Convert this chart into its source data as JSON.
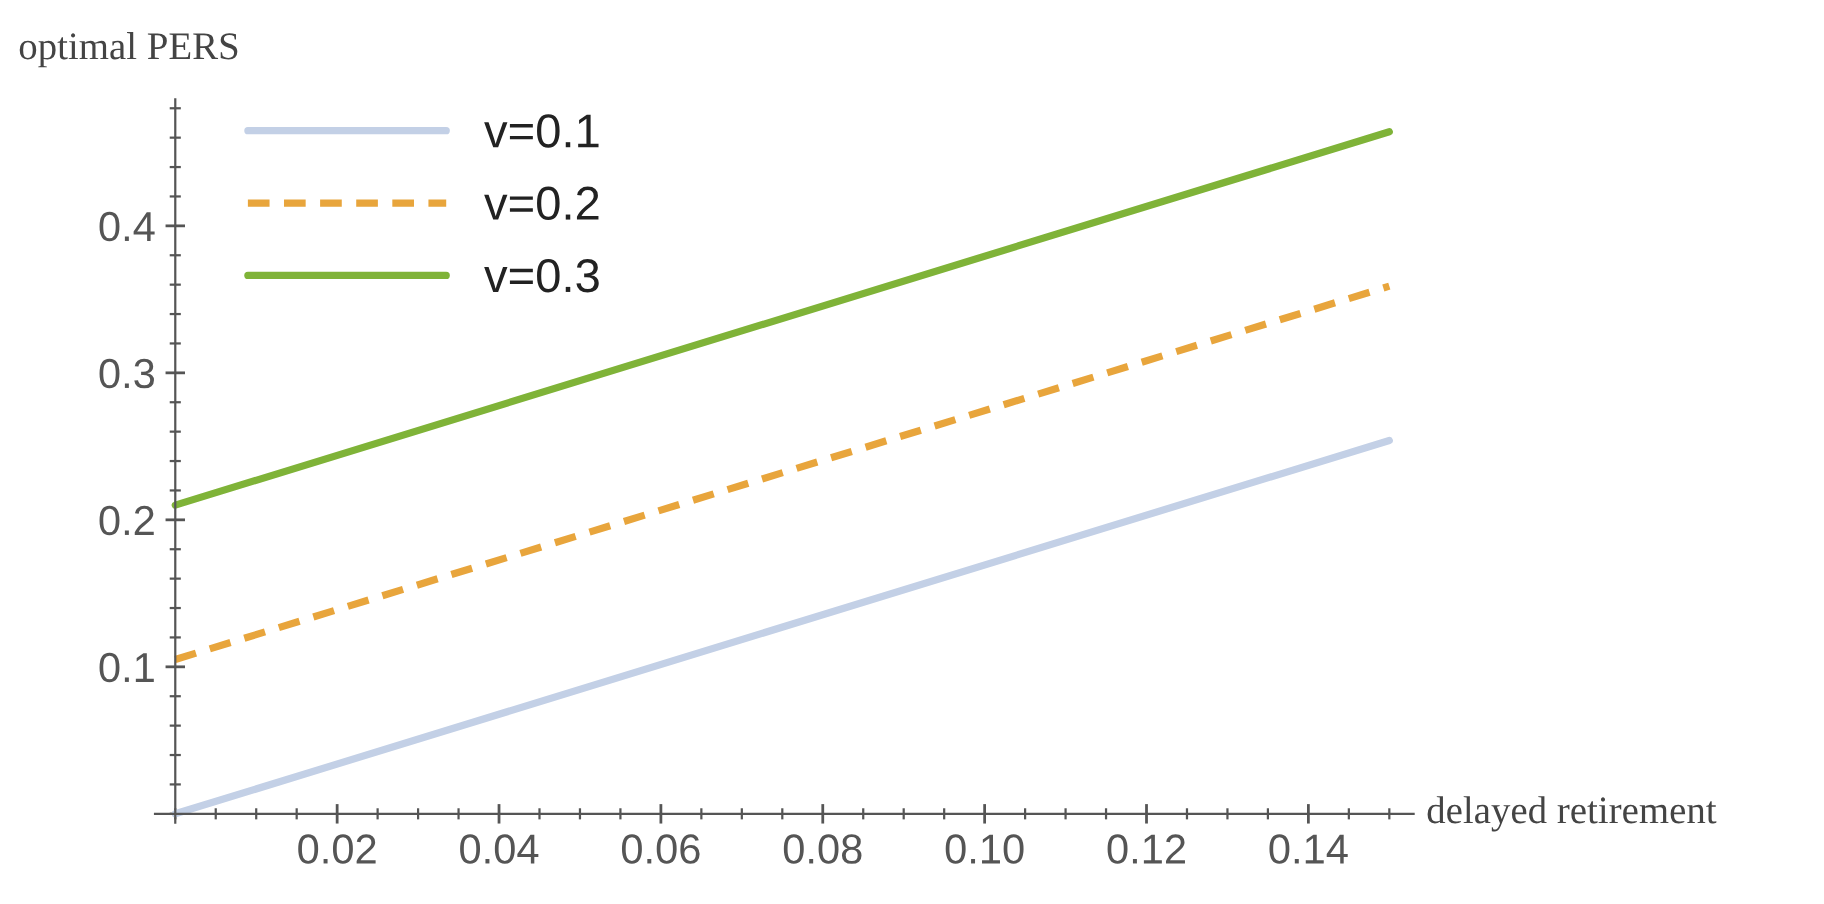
{
  "chart_data": {
    "type": "line",
    "xlabel": "delayed retirement",
    "ylabel": "optimal PERS",
    "x": [
      0,
      0.15
    ],
    "series": [
      {
        "name": "v=0.1",
        "color": "#c3d0e6",
        "values": [
          0.0,
          0.254
        ],
        "line_style": "solid"
      },
      {
        "name": "v=0.2",
        "color": "#e8a53c",
        "values": [
          0.105,
          0.359
        ],
        "line_style": "dashed"
      },
      {
        "name": "v=0.3",
        "color": "#7fb338",
        "values": [
          0.21,
          0.464
        ],
        "line_style": "solid"
      }
    ],
    "xlim": [
      -0.0025,
      0.153
    ],
    "ylim": [
      -0.006,
      0.486
    ],
    "xticks": [
      0.02,
      0.04,
      0.06,
      0.08,
      {
        "value": 0.1,
        "label": "0.10"
      },
      0.12,
      0.14
    ],
    "yticks": [
      0.1,
      0.2,
      0.3,
      0.4
    ],
    "grid": false,
    "legend": "top left"
  }
}
